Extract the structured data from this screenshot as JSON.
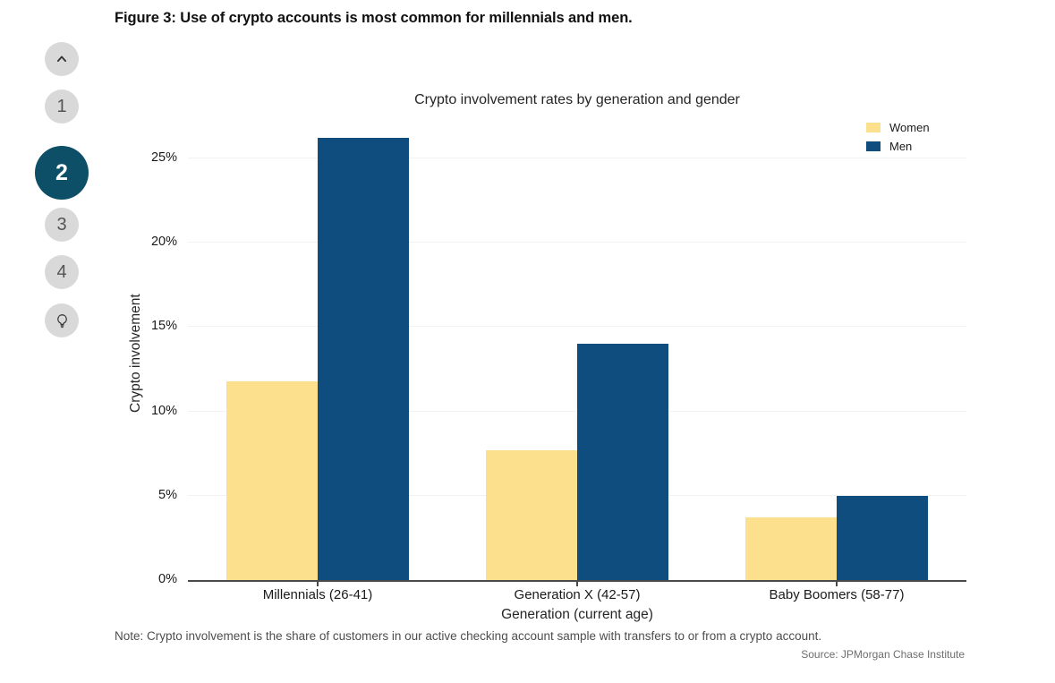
{
  "page": {
    "figure_title": "Figure 3: Use of crypto accounts is most common for millennials and men."
  },
  "sidebar": {
    "active_color": "#0d4f66",
    "inactive_color": "#d9d9d9",
    "items": [
      {
        "name": "scroll-up",
        "icon": "chevron-up-icon"
      },
      {
        "label": "1",
        "active": false
      },
      {
        "label": "2",
        "active": true
      },
      {
        "label": "3",
        "active": false
      },
      {
        "label": "4",
        "active": false
      },
      {
        "name": "insights",
        "icon": "lightbulb-icon"
      }
    ]
  },
  "chart_data": {
    "type": "bar",
    "title": "Crypto involvement rates by generation and gender",
    "categories": [
      "Millennials (26-41)",
      "Generation X (42-57)",
      "Baby Boomers (58-77)"
    ],
    "series": [
      {
        "name": "Women",
        "color": "#fde08d",
        "values": [
          11.8,
          7.7,
          3.7
        ]
      },
      {
        "name": "Men",
        "color": "#0e4d7e",
        "values": [
          26.2,
          14.0,
          5.0
        ]
      }
    ],
    "xlabel": "Generation (current age)",
    "ylabel": "Crypto involvement",
    "ylim": [
      0,
      27.5
    ],
    "yticks": [
      0,
      5,
      10,
      15,
      20,
      25
    ],
    "ytick_suffix": "%",
    "grid": true,
    "legend_position": "top-right"
  },
  "footer": {
    "note": "Note: Crypto involvement is the share of customers in our active checking account sample with transfers to or from a crypto account.",
    "source": "Source: JPMorgan Chase Institute"
  }
}
